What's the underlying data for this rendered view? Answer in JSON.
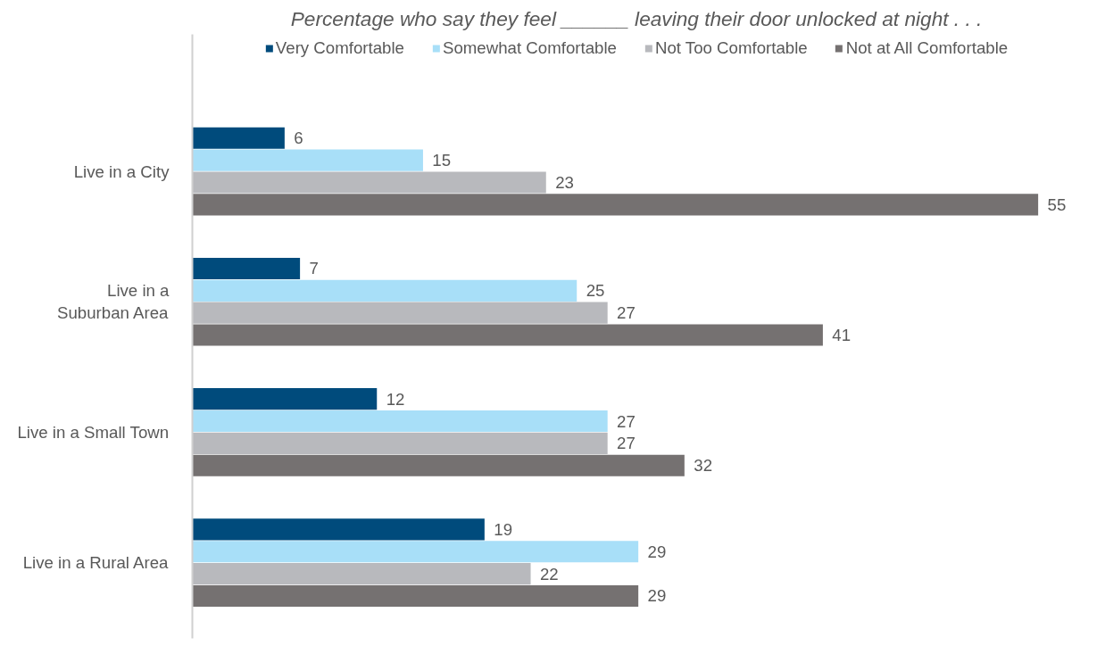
{
  "chart_data": {
    "type": "bar",
    "orientation": "horizontal",
    "title": "Percentage who say they feel ______ leaving their door unlocked at night . . .",
    "categories": [
      "Live in a City",
      "Live in a\nSuburban Area",
      "Live in a Small Town",
      "Live in a Rural Area"
    ],
    "series": [
      {
        "name": "Very Comfortable",
        "color": "#004b7c",
        "values": [
          6,
          7,
          12,
          19
        ]
      },
      {
        "name": "Somewhat Comfortable",
        "color": "#a8dff8",
        "values": [
          15,
          25,
          27,
          29
        ]
      },
      {
        "name": "Not Too Comfortable",
        "color": "#b8b9bd",
        "values": [
          23,
          27,
          27,
          22
        ]
      },
      {
        "name": "Not at All Comfortable",
        "color": "#757171",
        "values": [
          55,
          41,
          32,
          29
        ]
      }
    ],
    "data_labels": true,
    "legend": "top",
    "grid": false
  }
}
